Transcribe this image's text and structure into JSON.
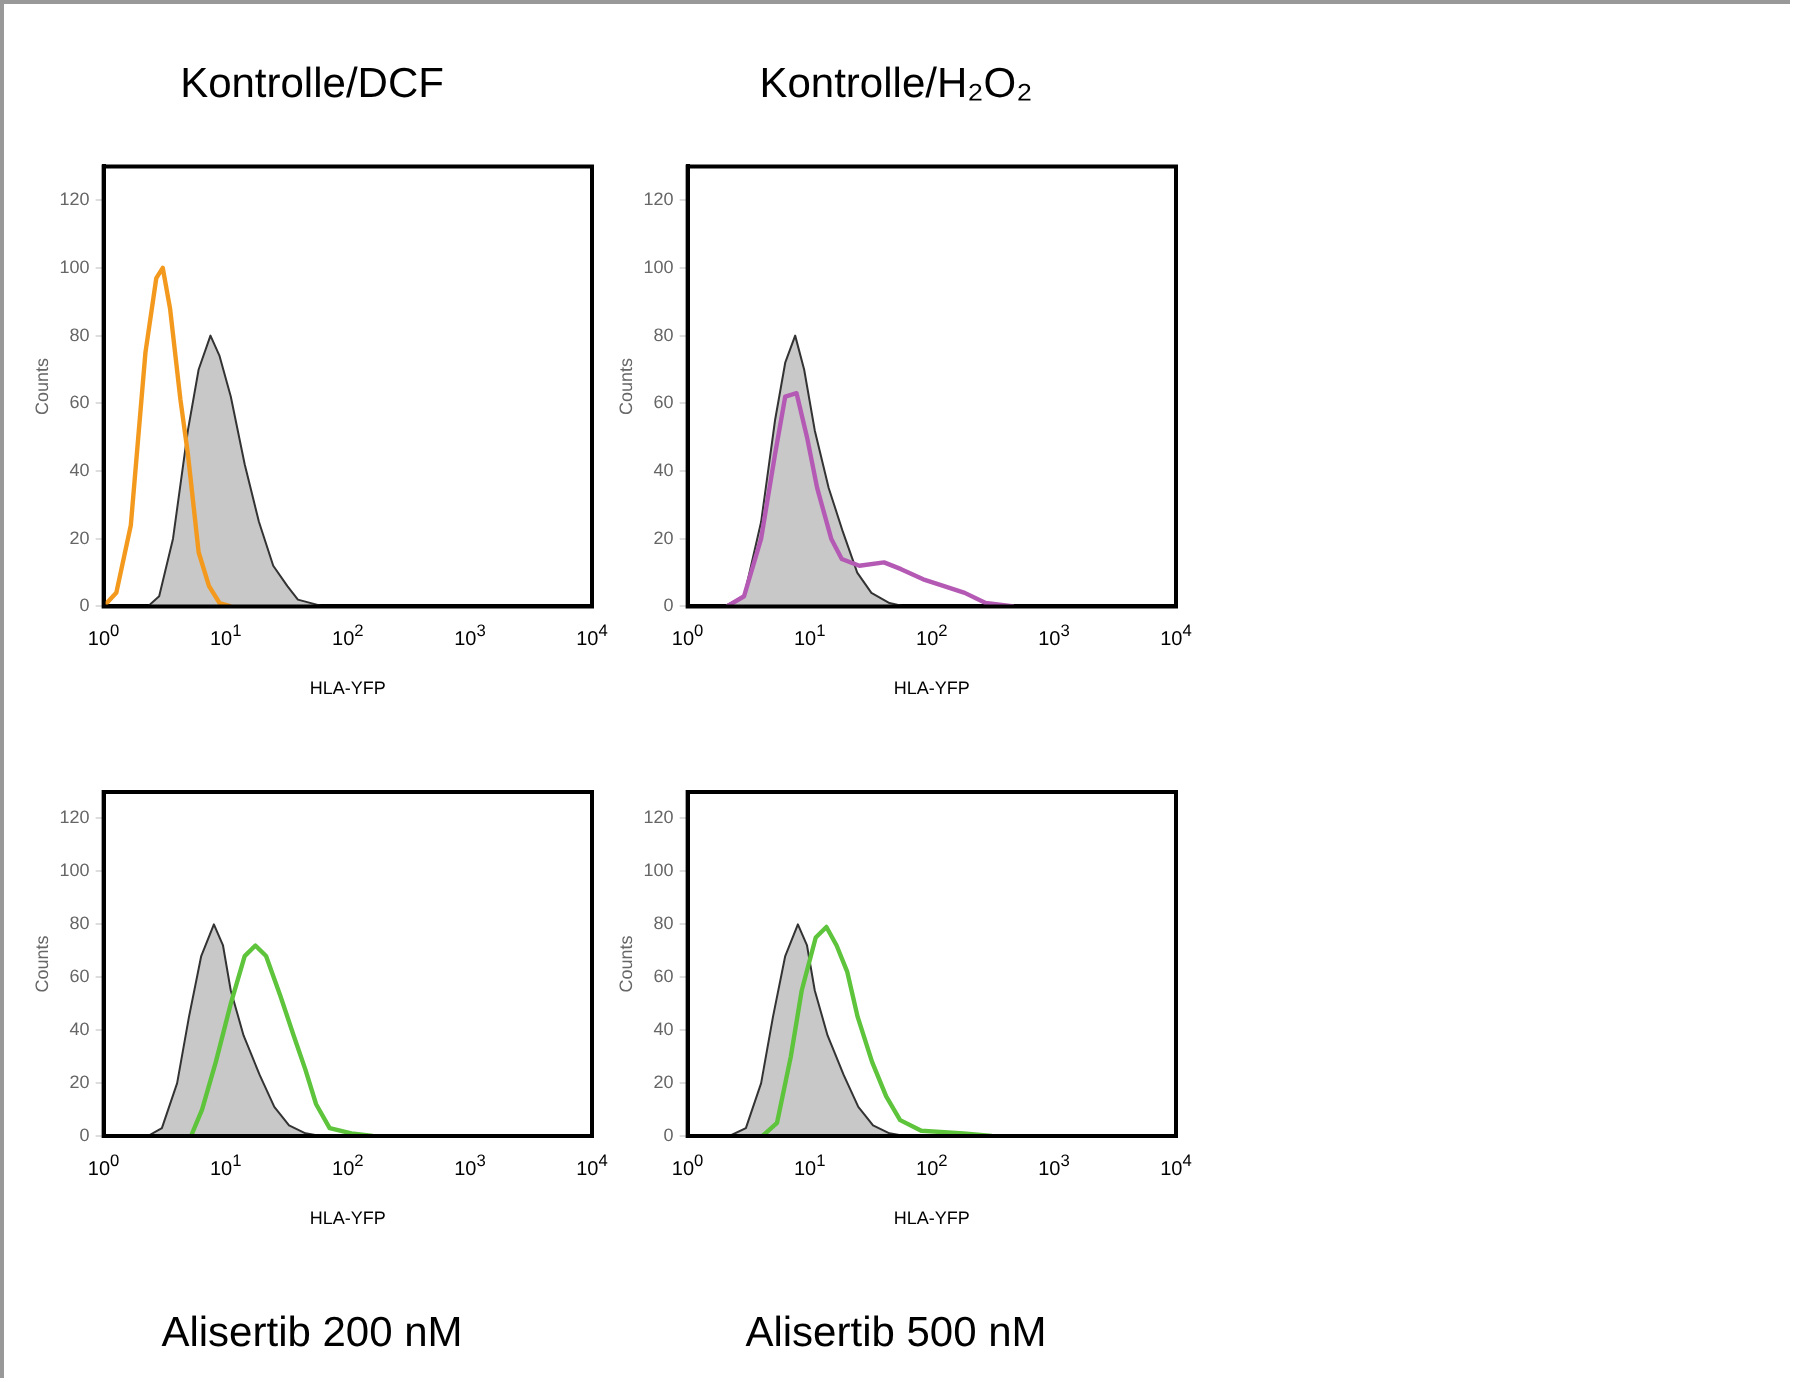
{
  "chart_data": [
    {
      "type": "line",
      "title": "Kontrolle/DCF",
      "xlabel": "HLA-YFP",
      "ylabel": "Counts",
      "log": "x",
      "xlim": [
        1,
        10000
      ],
      "xticks": [
        {
          "value": 1,
          "label": "10$^{0}$"
        },
        {
          "value": 10,
          "label": "10$^{1}$"
        },
        {
          "value": 100,
          "label": "10$^{2}$"
        },
        {
          "value": 1000,
          "label": "10$^{3}$"
        },
        {
          "value": 10000,
          "label": "10$^{4}$"
        }
      ],
      "ylim": [
        0,
        130
      ],
      "yticks": [
        0,
        20,
        40,
        60,
        80,
        100,
        120
      ],
      "grid": false,
      "legend": false,
      "marker": "none",
      "series": [
        {
          "type": "area",
          "color": "#c8c8c8",
          "x": [
            2.3,
            2.85,
            3.7,
            4.9,
            6,
            7.5,
            8.9,
            11,
            14.3,
            18.7,
            24.5,
            32,
            39,
            63
          ],
          "values": [
            0,
            3,
            20,
            52,
            70,
            80,
            74,
            62,
            42,
            25,
            12,
            6,
            2,
            0
          ]
        },
        {
          "type": "line",
          "color": "#f39a1e",
          "x": [
            1,
            1.27,
            1.67,
            2.2,
            2.7,
            3.05,
            3.5,
            4.26,
            4.9,
            6,
            7.3,
            8.9,
            11
          ],
          "values": [
            0,
            4,
            24,
            75,
            97,
            100,
            88,
            61,
            45,
            16,
            6,
            1,
            0
          ]
        }
      ]
    },
    {
      "type": "line",
      "title": "Kontrolle/H₂O₂",
      "xlabel": "HLA-YFP",
      "ylabel": "Counts",
      "log": "x",
      "xlim": [
        1,
        10000
      ],
      "xticks": [
        {
          "value": 1,
          "label": "10$^{0}$"
        },
        {
          "value": 10,
          "label": "10$^{1}$"
        },
        {
          "value": 100,
          "label": "10$^{2}$"
        },
        {
          "value": 1000,
          "label": "10$^{3}$"
        },
        {
          "value": 10000,
          "label": "10$^{4}$"
        }
      ],
      "ylim": [
        0,
        130
      ],
      "yticks": [
        0,
        20,
        40,
        60,
        80,
        100,
        120
      ],
      "grid": false,
      "legend": false,
      "marker": "none",
      "series": [
        {
          "type": "area",
          "color": "#c8c8c8",
          "x": [
            2,
            2.9,
            4,
            5.2,
            6.3,
            7.6,
            9,
            11,
            14.3,
            18.7,
            24.5,
            32,
            45,
            60
          ],
          "values": [
            0,
            3,
            25,
            55,
            72,
            80,
            70,
            52,
            35,
            22,
            10,
            4,
            1,
            0
          ]
        },
        {
          "type": "line",
          "color": "#b45ab4",
          "x": [
            2.1,
            2.9,
            4,
            5.2,
            6.3,
            7.8,
            9.5,
            11.5,
            15,
            18.3,
            25.5,
            40.6,
            56,
            85,
            126,
            186,
            276,
            470
          ],
          "values": [
            0,
            3,
            20,
            45,
            62,
            63,
            50,
            35,
            20,
            14,
            12,
            13,
            11,
            8,
            6,
            4,
            1,
            0
          ]
        }
      ]
    },
    {
      "type": "line",
      "title": "Alisertib 200 nM",
      "xlabel": "HLA-YFP",
      "ylabel": "Counts",
      "log": "x",
      "xlim": [
        1,
        10000
      ],
      "xticks": [
        {
          "value": 1,
          "label": "10$^{0}$"
        },
        {
          "value": 10,
          "label": "10$^{1}$"
        },
        {
          "value": 100,
          "label": "10$^{2}$"
        },
        {
          "value": 1000,
          "label": "10$^{3}$"
        },
        {
          "value": 10000,
          "label": "10$^{4}$"
        }
      ],
      "ylim": [
        0,
        130
      ],
      "yticks": [
        0,
        20,
        40,
        60,
        80,
        100,
        120
      ],
      "grid": false,
      "legend": false,
      "marker": "none",
      "series": [
        {
          "type": "area",
          "color": "#c8c8c8",
          "x": [
            2.3,
            3,
            4,
            5,
            6.3,
            8,
            9.5,
            11,
            14,
            19,
            25,
            33,
            45,
            60
          ],
          "values": [
            0,
            3,
            20,
            45,
            68,
            80,
            72,
            55,
            38,
            23,
            11,
            4,
            1,
            0
          ]
        },
        {
          "type": "line",
          "color": "#5ec43c",
          "x": [
            5.2,
            6.4,
            8.3,
            11,
            14.3,
            17.5,
            21.4,
            28,
            36,
            45,
            55,
            71,
            107,
            160
          ],
          "values": [
            0,
            10,
            28,
            50,
            68,
            72,
            68,
            53,
            38,
            25,
            12,
            3,
            1,
            0
          ]
        }
      ]
    },
    {
      "type": "line",
      "title": "Alisertib 500 nM",
      "xlabel": "HLA-YFP",
      "ylabel": "Counts",
      "log": "x",
      "xlim": [
        1,
        10000
      ],
      "xticks": [
        {
          "value": 1,
          "label": "10$^{0}$"
        },
        {
          "value": 10,
          "label": "10$^{1}$"
        },
        {
          "value": 100,
          "label": "10$^{2}$"
        },
        {
          "value": 1000,
          "label": "10$^{3}$"
        },
        {
          "value": 10000,
          "label": "10$^{4}$"
        }
      ],
      "ylim": [
        0,
        130
      ],
      "yticks": [
        0,
        20,
        40,
        60,
        80,
        100,
        120
      ],
      "grid": false,
      "legend": false,
      "marker": "none",
      "series": [
        {
          "type": "area",
          "color": "#c8c8c8",
          "x": [
            2.2,
            3,
            4,
            5,
            6.3,
            8,
            9.5,
            11,
            14,
            19,
            25,
            33,
            45,
            60
          ],
          "values": [
            0,
            3,
            20,
            45,
            68,
            80,
            72,
            55,
            38,
            23,
            11,
            4,
            1,
            0
          ]
        },
        {
          "type": "line",
          "color": "#5ec43c",
          "x": [
            4.1,
            5.4,
            7,
            8.6,
            11.2,
            13.7,
            16.6,
            20.3,
            24.7,
            32.4,
            42.3,
            55,
            82,
            182,
            309
          ],
          "values": [
            0,
            5,
            30,
            55,
            75,
            79,
            72,
            62,
            45,
            28,
            15,
            6,
            2,
            1,
            0
          ]
        }
      ]
    }
  ]
}
